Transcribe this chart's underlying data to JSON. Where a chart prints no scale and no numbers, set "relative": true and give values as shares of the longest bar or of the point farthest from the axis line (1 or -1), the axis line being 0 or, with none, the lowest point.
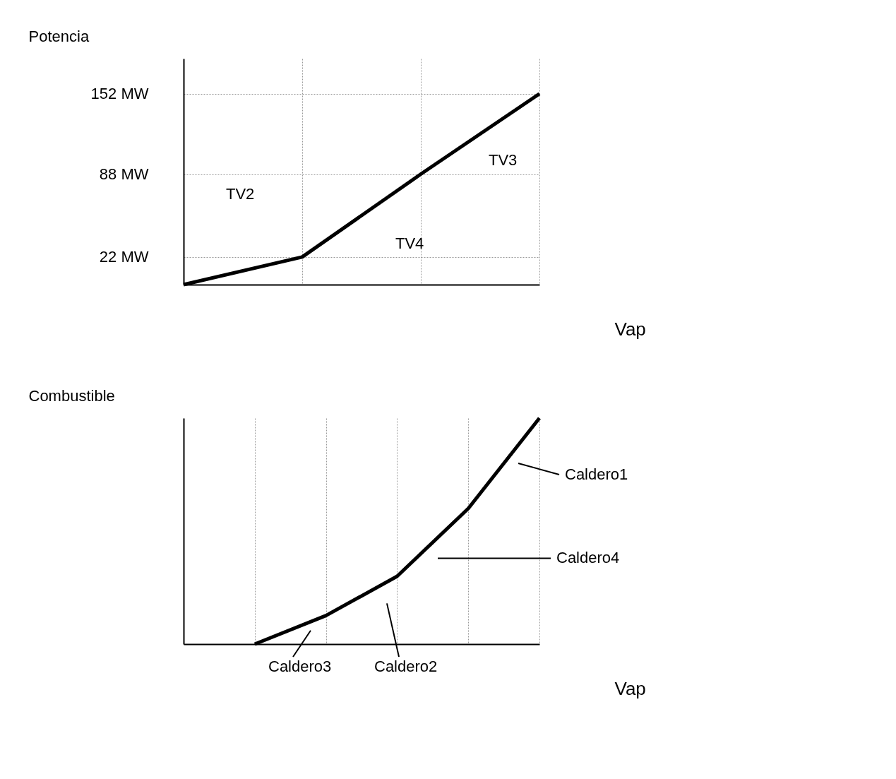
{
  "chart_data": [
    {
      "type": "line",
      "ylabel": "Potencia",
      "xlabel": "Vap",
      "categories": [
        null,
        null,
        null,
        null
      ],
      "series": [
        {
          "color": "#000000",
          "values": [
            0,
            22,
            88,
            152
          ]
        }
      ],
      "ylim": [
        0,
        180
      ],
      "yticks": [
        {
          "value": 22,
          "label": "22 MW"
        },
        {
          "value": 88,
          "label": "88 MW"
        },
        {
          "value": 152,
          "label": "152 MW"
        }
      ],
      "tick_labels": "y",
      "grid": true,
      "line_style": "solid",
      "marker": "none",
      "annotations": [
        "TV2",
        "TV4",
        "TV3"
      ]
    },
    {
      "type": "line",
      "ylabel": "Combustible",
      "xlabel": "Vap",
      "relative": true,
      "categories": [
        null,
        null,
        null,
        null,
        null,
        null
      ],
      "series": [
        {
          "color": "#000000",
          "values": [
            null,
            0,
            0.126,
            0.3,
            0.6,
            1
          ]
        }
      ],
      "tick_labels": false,
      "grid": true,
      "line_style": "solid",
      "marker": "none",
      "annotations": [
        "Caldero1",
        "Caldero4",
        "Caldero3",
        "Caldero2"
      ]
    }
  ]
}
